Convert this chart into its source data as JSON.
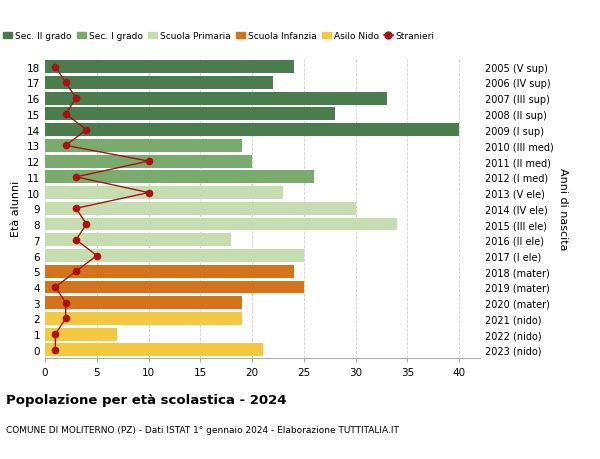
{
  "ages": [
    18,
    17,
    16,
    15,
    14,
    13,
    12,
    11,
    10,
    9,
    8,
    7,
    6,
    5,
    4,
    3,
    2,
    1,
    0
  ],
  "years": [
    "2005 (V sup)",
    "2006 (IV sup)",
    "2007 (III sup)",
    "2008 (II sup)",
    "2009 (I sup)",
    "2010 (III med)",
    "2011 (II med)",
    "2012 (I med)",
    "2013 (V ele)",
    "2014 (IV ele)",
    "2015 (III ele)",
    "2016 (II ele)",
    "2017 (I ele)",
    "2018 (mater)",
    "2019 (mater)",
    "2020 (mater)",
    "2021 (nido)",
    "2022 (nido)",
    "2023 (nido)"
  ],
  "bar_values": [
    24,
    22,
    33,
    28,
    40,
    19,
    20,
    26,
    23,
    30,
    34,
    18,
    25,
    24,
    25,
    19,
    19,
    7,
    21
  ],
  "bar_colors": [
    "#4a7c4e",
    "#4a7c4e",
    "#4a7c4e",
    "#4a7c4e",
    "#4a7c4e",
    "#7aab6e",
    "#7aab6e",
    "#7aab6e",
    "#c5ddb0",
    "#c5ddb0",
    "#c5ddb0",
    "#c5ddb0",
    "#c5ddb0",
    "#d4731a",
    "#d4731a",
    "#d4731a",
    "#f5c842",
    "#f5c842",
    "#f5c842"
  ],
  "stranieri_values": [
    1,
    2,
    3,
    2,
    4,
    2,
    10,
    3,
    10,
    3,
    4,
    3,
    5,
    3,
    1,
    2,
    2,
    1,
    1
  ],
  "title_main": "Popolazione per età scolastica - 2024",
  "title_sub": "COMUNE DI MOLITERNO (PZ) - Dati ISTAT 1° gennaio 2024 - Elaborazione TUTTITALIA.IT",
  "ylabel_left": "Età alunni",
  "ylabel_right": "Anni di nascita",
  "xlim": [
    0,
    42
  ],
  "xticks": [
    0,
    5,
    10,
    15,
    20,
    25,
    30,
    35,
    40
  ],
  "legend_labels": [
    "Sec. II grado",
    "Sec. I grado",
    "Scuola Primaria",
    "Scuola Infanzia",
    "Asilo Nido",
    "Stranieri"
  ],
  "legend_colors": [
    "#4a7c4e",
    "#7aab6e",
    "#c5ddb0",
    "#d4731a",
    "#f5c842",
    "#aa1111"
  ],
  "stranieri_color": "#aa1111",
  "background_color": "#ffffff",
  "grid_color": "#cccccc"
}
